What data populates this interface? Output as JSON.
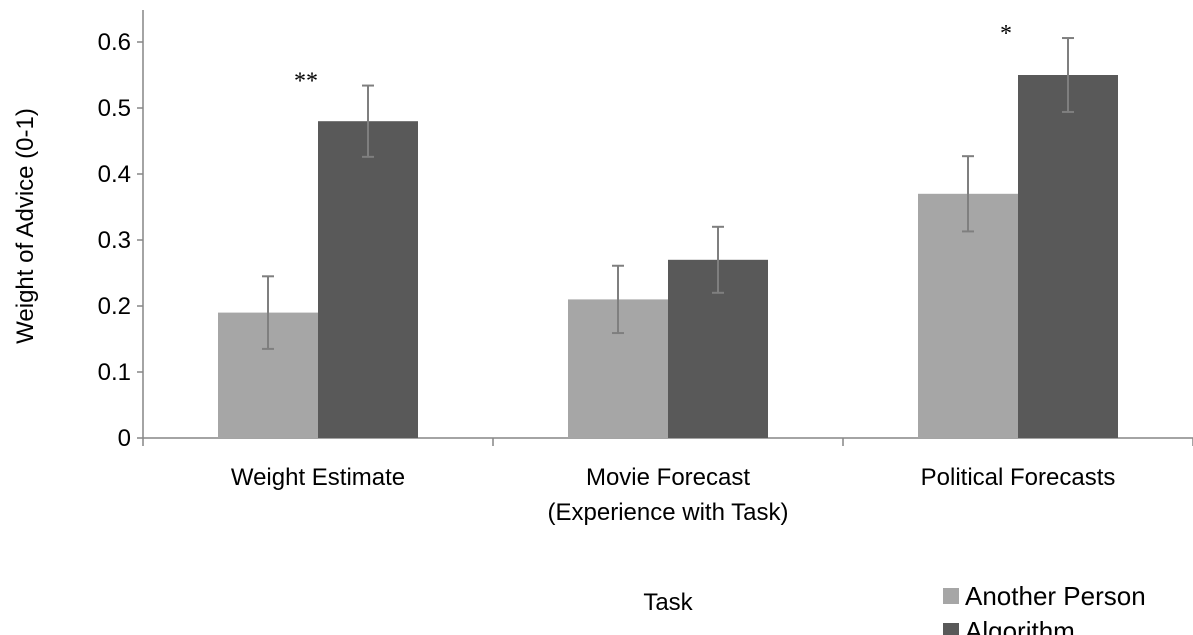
{
  "chart_data": {
    "type": "bar",
    "title": "",
    "xlabel": "Task",
    "ylabel": "Weight of Advice (0-1)",
    "ylim": [
      0,
      0.6
    ],
    "yticks": [
      "0",
      "0.1",
      "0.2",
      "0.3",
      "0.4",
      "0.5",
      "0.6"
    ],
    "categories": [
      [
        "Weight Estimate"
      ],
      [
        "Movie Forecast",
        "(Experience with Task)"
      ],
      [
        "Political Forecasts"
      ]
    ],
    "series": [
      {
        "name": "Another Person",
        "color": "#a6a6a6",
        "values": [
          0.19,
          0.21,
          0.37
        ],
        "error": [
          0.055,
          0.051,
          0.057
        ]
      },
      {
        "name": "Algorithm",
        "color": "#595959",
        "values": [
          0.48,
          0.27,
          0.55
        ],
        "error": [
          0.054,
          0.05,
          0.056
        ]
      }
    ],
    "significance": [
      "**",
      "",
      "*"
    ],
    "grid": false,
    "legend_position": "bottom-right"
  }
}
